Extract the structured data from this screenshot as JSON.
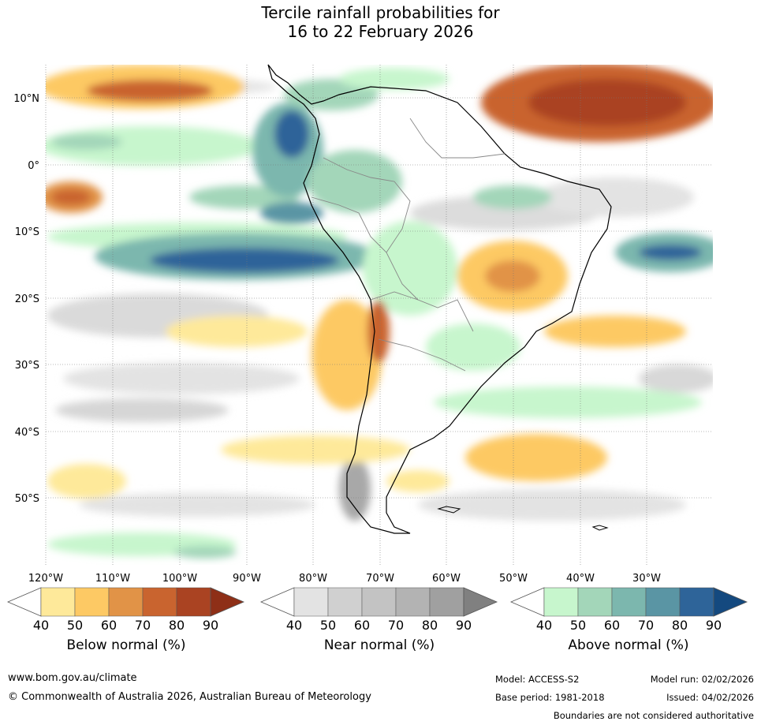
{
  "title": {
    "line1": "Tercile rainfall probabilities for",
    "line2": "16 to 22 February 2026"
  },
  "map": {
    "lat_labels": [
      "10°N",
      "0°",
      "10°S",
      "20°S",
      "30°S",
      "40°S",
      "50°S"
    ],
    "lon_labels": [
      "120°W",
      "110°W",
      "100°W",
      "90°W",
      "80°W",
      "70°W",
      "60°W",
      "50°W",
      "40°W",
      "30°W"
    ]
  },
  "legends": [
    {
      "label": "Below normal (%)",
      "ticks": [
        "40",
        "50",
        "60",
        "70",
        "80",
        "90"
      ],
      "colors": [
        "#ffffff",
        "#fee99a",
        "#fdc964",
        "#e19347",
        "#c9642f",
        "#aa4322",
        "#8e2f17"
      ]
    },
    {
      "label": "Near normal (%)",
      "ticks": [
        "40",
        "50",
        "60",
        "70",
        "80",
        "90"
      ],
      "colors": [
        "#ffffff",
        "#e3e3e3",
        "#d0d0d0",
        "#c3c3c3",
        "#b3b3b3",
        "#a0a0a0",
        "#808080"
      ]
    },
    {
      "label": "Above normal (%)",
      "ticks": [
        "40",
        "50",
        "60",
        "70",
        "80",
        "90"
      ],
      "colors": [
        "#ffffff",
        "#c7f6cd",
        "#a3d6b9",
        "#7cb7ae",
        "#5a95a4",
        "#2e6499",
        "#14497f"
      ]
    }
  ],
  "footer": {
    "website": "www.bom.gov.au/climate",
    "copyright": "© Commonwealth of Australia 2026, Australian Bureau of Meteorology",
    "model": "Model: ACCESS-S2",
    "model_run": "Model run: 02/02/2026",
    "base_period": "Base period: 1981-2018",
    "issued": "Issued: 04/02/2026",
    "disclaimer": "Boundaries are not considered authoritative"
  }
}
